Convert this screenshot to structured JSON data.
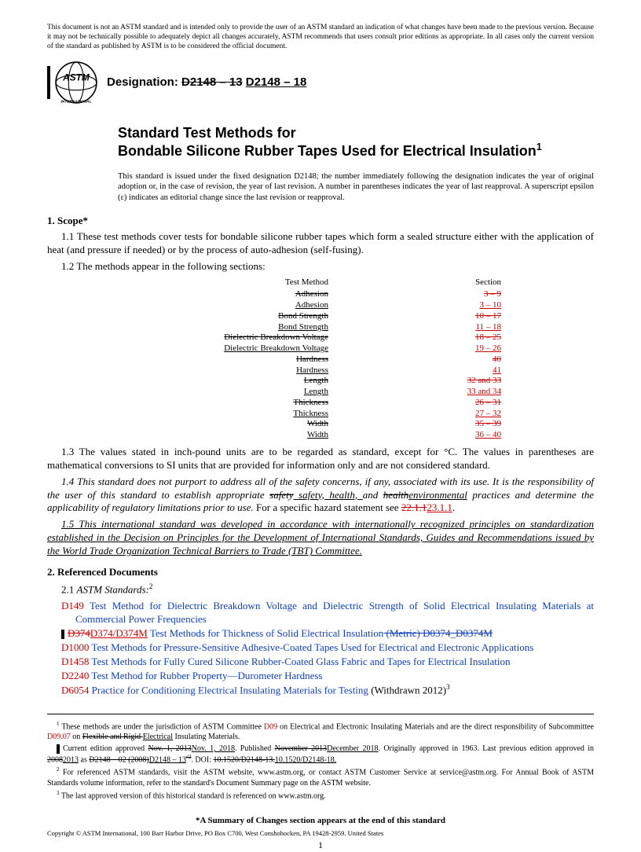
{
  "colors": {
    "red": "#d00000",
    "blue": "#1040c0",
    "black": "#000000",
    "bg": "#ffffff"
  },
  "disclaimer": "This document is not an ASTM standard and is intended only to provide the user of an ASTM standard an indication of what changes have been made to the previous version. Because it may not be technically possible to adequately depict all changes accurately, ASTM recommends that users consult prior editions as appropriate. In all cases only the current version of the standard as published by ASTM is to be considered the official document.",
  "designation_label": "Designation: ",
  "designation_old": "D2148 – 13",
  "designation_new": "D2148 – 18",
  "logo_top": "ASTM",
  "logo_bottom": "INTERNATIONAL",
  "title_l1": "Standard Test Methods for",
  "title_l2": "Bondable Silicone Rubber Tapes Used for Electrical Insulation",
  "title_sup": "1",
  "issue_note": "This standard is issued under the fixed designation D2148; the number immediately following the designation indicates the year of original adoption or, in the case of revision, the year of last revision. A number in parentheses indicates the year of last reapproval. A superscript epsilon (ε) indicates an editorial change since the last revision or reapproval.",
  "s1_head": "1. Scope*",
  "s1_1": "1.1 These test methods cover tests for bondable silicone rubber tapes which form a sealed structure either with the application of heat (and pressure if needed) or by the process of auto-adhesion (self-fusing).",
  "s1_2": "1.2 The methods appear in the following sections:",
  "table_hdr_l": "Test Method",
  "table_hdr_r": "Section",
  "methods": [
    {
      "name": "Adhesion",
      "sec": "3 – 9",
      "struck": true
    },
    {
      "name": "Adhesion",
      "sec": "3 – 10",
      "struck": false
    },
    {
      "name": "Bond Strength",
      "sec": "10 – 17",
      "struck": true
    },
    {
      "name": "Bond Strength",
      "sec": "11 – 18",
      "struck": false
    },
    {
      "name": "Dielectric Breakdown Voltage",
      "sec": "18 – 25",
      "struck": true
    },
    {
      "name": "Dielectric Breakdown Voltage",
      "sec": "19 – 26",
      "struck": false
    },
    {
      "name": "Hardness",
      "sec": "40",
      "struck": true
    },
    {
      "name": "Hardness",
      "sec": "41",
      "struck": false
    },
    {
      "name": "Length",
      "sec": "32 and 33",
      "struck": true
    },
    {
      "name": "Length",
      "sec": "33 and 34",
      "struck": false
    },
    {
      "name": "Thickness",
      "sec": "26 – 31",
      "struck": true
    },
    {
      "name": "Thickness",
      "sec": "27 – 32",
      "struck": false
    },
    {
      "name": "Width",
      "sec": "35 – 39",
      "struck": true
    },
    {
      "name": "Width",
      "sec": "36 – 40",
      "struck": false
    }
  ],
  "s1_3": "1.3 The values stated in inch-pound units are to be regarded as standard, except for °C. The values in parentheses are mathematical conversions to SI units that are provided for information only and are not considered standard.",
  "s1_4_a": "1.4 This standard does not purport to address all of the safety concerns, if any, associated with its use. It is the responsibility of the user of this standard to establish appropriate ",
  "s1_4_safety_strike": "safety",
  "s1_4_safety_new": " safety, health, ",
  "s1_4_and": "and ",
  "s1_4_health_strike": "health",
  "s1_4_env_new": "environmental",
  "s1_4_b": " practices and determine the applicability of regulatory limitations prior to use.",
  "s1_4_c": " For a specific hazard statement see ",
  "s1_4_ref_old": "22.1.1",
  "s1_4_ref_new": "23.1.1",
  "s1_4_dot": ".",
  "s1_5": "1.5 This international standard was developed in accordance with internationally recognized principles on standardization established in the Decision on Principles for the Development of International Standards, Guides and Recommendations issued by the World Trade Organization Technical Barriers to Trade (TBT) Committee.",
  "s2_head": "2. Referenced Documents",
  "s2_1": "2.1 ",
  "s2_1_i": "ASTM Standards:",
  "s2_1_sup": "2",
  "refs": {
    "d149_code": "D149",
    "d149_txt": " Test Method for Dielectric Breakdown Voltage and Dielectric Strength of Solid Electrical Insulating Materials at Commercial Power Frequencies",
    "d374_old": "D374",
    "d374_new": "D374/D374M",
    "d374_txt": " Test Methods for Thickness of Solid Electrical Insulation",
    "d374_tail_old": " (Metric) D0374_D0374M",
    "d1000_code": "D1000",
    "d1000_txt": " Test Methods for Pressure-Sensitive Adhesive-Coated Tapes Used for Electrical and Electronic Applications",
    "d1458_code": "D1458",
    "d1458_txt": " Test Methods for Fully Cured Silicone Rubber-Coated Glass Fabric and Tapes for Electrical Insulation",
    "d2240_code": "D2240",
    "d2240_txt": " Test Method for Rubber Property—Durometer Hardness",
    "d6054_code": "D6054",
    "d6054_txt": " Practice for Conditioning Electrical Insulating Materials for Testing",
    "d6054_wd": " (Withdrawn 2012)",
    "d6054_sup": "3"
  },
  "fn1_a": " These methods are under the jurisdiction of ASTM Committee ",
  "fn1_d09": "D09",
  "fn1_b": " on Electrical and Electronic Insulating Materials and are the direct responsibility of Subcommittee ",
  "fn1_d0907": "D09.07",
  "fn1_c": " on ",
  "fn1_strike": "Flexible and Rigid ",
  "fn1_new": "Electrical",
  "fn1_d": " Insulating Materials.",
  "fn1_line2_a": "Current edition approved ",
  "fn1_line2_old1": "Nov. 1, 2013",
  "fn1_line2_new1": "Nov. 1, 2018",
  "fn1_line2_b": ". Published ",
  "fn1_line2_old2": "November 2013",
  "fn1_line2_new2": "December 2018",
  "fn1_line2_c": ". Originally approved in 1963. Last previous edition approved in ",
  "fn1_line2_old3": "2008",
  "fn1_line2_new3": "2013",
  "fn1_line2_d": " as ",
  "fn1_line2_old4": "D2148 – 02 (2008)",
  "fn1_line2_new4": "D2148 – 13",
  "fn1_line2_old5": "ε2",
  "fn1_line2_e": ". DOI: ",
  "fn1_line2_doiold": "10.1520/D2148-13.",
  "fn1_line2_doinew": "10.1520/D2148-18.",
  "fn2": " For referenced ASTM standards, visit the ASTM website, www.astm.org, or contact ASTM Customer Service at service@astm.org. For Annual Book of ASTM Standards volume information, refer to the standard's Document Summary page on the ASTM website.",
  "fn3": " The last approved version of this historical standard is referenced on www.astm.org.",
  "bottom_note": "*A Summary of Changes section appears at the end of this standard",
  "copyright": "Copyright © ASTM International, 100 Barr Harbor Drive, PO Box C700, West Conshohocken, PA 19428-2959. United States",
  "page_num": "1"
}
